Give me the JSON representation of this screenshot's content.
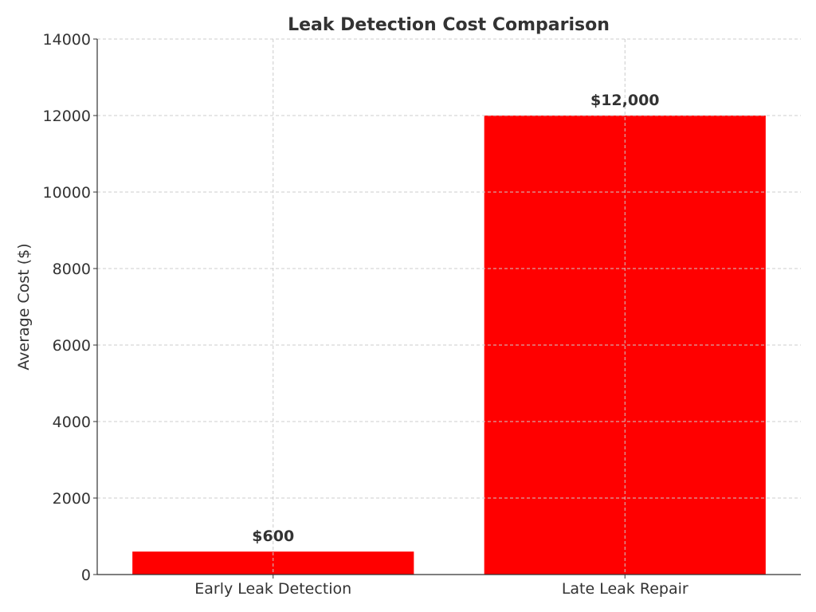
{
  "chart_data": {
    "type": "bar",
    "title": "Leak Detection Cost Comparison",
    "xlabel": "",
    "ylabel": "Average Cost ($)",
    "categories": [
      "Early Leak Detection",
      "Late Leak Repair"
    ],
    "values": [
      600,
      12000
    ],
    "data_labels": [
      "$600",
      "$12,000"
    ],
    "ylim": [
      0,
      14000
    ],
    "yticks": [
      "0",
      "2000",
      "4000",
      "6000",
      "8000",
      "10000",
      "12000",
      "14000"
    ],
    "grid": true,
    "bar_color": "#ff0000"
  }
}
